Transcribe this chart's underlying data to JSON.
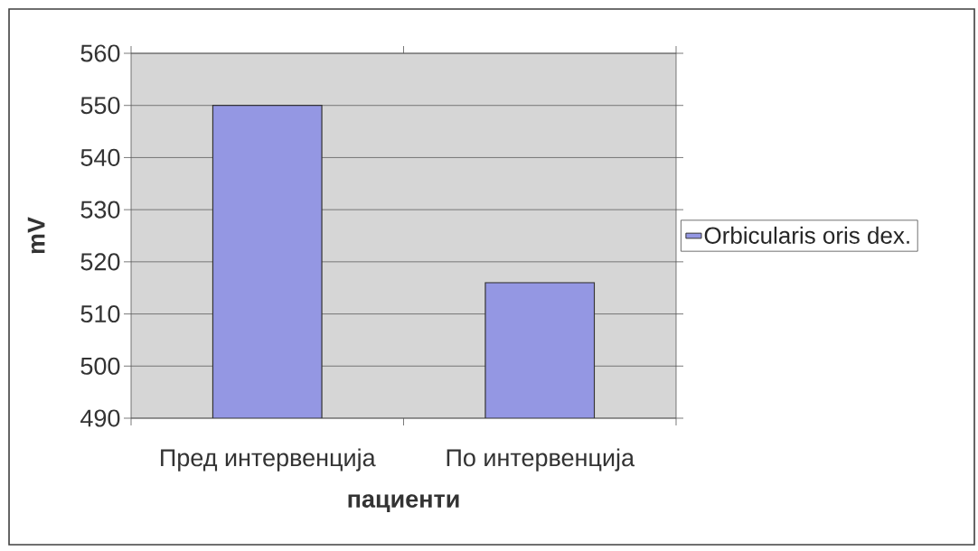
{
  "chart_data": {
    "type": "bar",
    "xlabel": "пациенти",
    "ylabel": "mV",
    "categories": [
      "Пред интервенција",
      "По интервенција"
    ],
    "series": [
      {
        "name": "Orbicularis oris dex.",
        "color": "#9497e3",
        "values": [
          550,
          516
        ]
      }
    ],
    "ylim": [
      490,
      560
    ],
    "yticks": [
      490,
      500,
      510,
      520,
      530,
      540,
      550,
      560
    ],
    "grid": "y",
    "legend": "right"
  }
}
